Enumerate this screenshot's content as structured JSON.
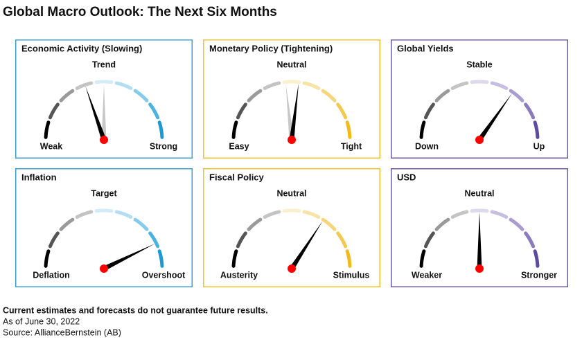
{
  "header": {
    "title": "Global Macro Outlook: The Next Six Months"
  },
  "panels": [
    {
      "title": "Economic Activity (Slowing)",
      "top_label": "Trend",
      "left_label": "Weak",
      "right_label": "Strong"
    },
    {
      "title": "Monetary Policy (Tightening)",
      "top_label": "Neutral",
      "left_label": "Easy",
      "right_label": "Tight"
    },
    {
      "title": "Global Yields",
      "top_label": "Stable",
      "left_label": "Down",
      "right_label": "Up"
    },
    {
      "title": "Inflation",
      "top_label": "Target",
      "left_label": "Deflation",
      "right_label": "Overshoot"
    },
    {
      "title": "Fiscal Policy",
      "top_label": "Neutral",
      "left_label": "Austerity",
      "right_label": "Stimulus"
    },
    {
      "title": "USD",
      "top_label": "Neutral",
      "left_label": "Weaker",
      "right_label": "Stronger"
    }
  ],
  "footer": {
    "note": "Current estimates and forecasts do not guarantee future results.",
    "date": "As of June 30, 2022",
    "source": "Source: AllianceBernstein (AB)"
  }
}
